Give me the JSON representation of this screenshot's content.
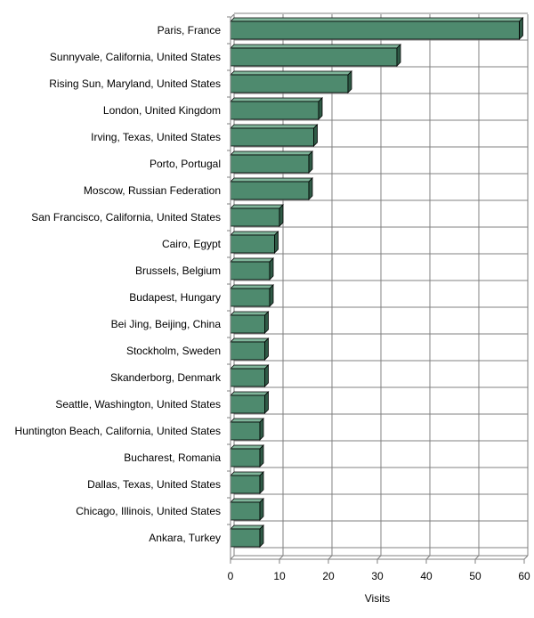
{
  "chart_data": {
    "type": "bar",
    "orientation": "horizontal",
    "style": "3d",
    "title": "",
    "xlabel": "Visits",
    "ylabel": "",
    "xlim": [
      0,
      60
    ],
    "xticks": [
      0,
      10,
      20,
      30,
      40,
      50,
      60
    ],
    "grid": true,
    "bar_color": "#4e8a6e",
    "categories": [
      "Paris, France",
      "Sunnyvale, California, United States",
      "Rising Sun, Maryland, United States",
      "London, United Kingdom",
      "Irving, Texas, United States",
      "Porto, Portugal",
      "Moscow, Russian Federation",
      "San Francisco, California, United States",
      "Cairo, Egypt",
      "Brussels, Belgium",
      "Budapest, Hungary",
      "Bei Jing, Beijing, China",
      "Stockholm, Sweden",
      "Skanderborg, Denmark",
      "Seattle, Washington, United States",
      "Huntington Beach, California, United States",
      "Bucharest, Romania",
      "Dallas, Texas, United States",
      "Chicago, Illinois, United States",
      "Ankara, Turkey"
    ],
    "values": [
      59,
      34,
      24,
      18,
      17,
      16,
      16,
      10,
      9,
      8,
      8,
      7,
      7,
      7,
      7,
      6,
      6,
      6,
      6,
      6
    ]
  }
}
